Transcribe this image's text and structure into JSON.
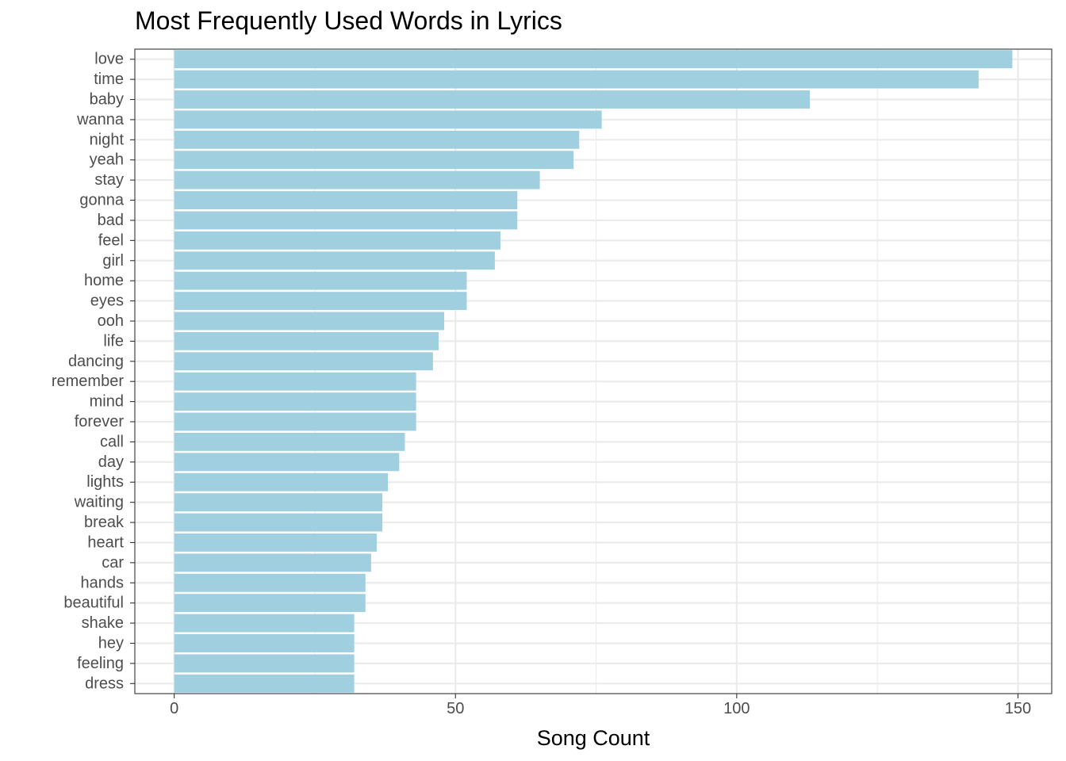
{
  "chart_data": {
    "type": "bar",
    "orientation": "horizontal",
    "title": "Most Frequently Used Words in Lyrics",
    "xlabel": "Song Count",
    "ylabel": "",
    "xlim": [
      -7,
      156
    ],
    "xticks": [
      0,
      50,
      100,
      150
    ],
    "grid": true,
    "legend": "none",
    "bar_color": "#a0cfe0",
    "categories": [
      "love",
      "time",
      "baby",
      "wanna",
      "night",
      "yeah",
      "stay",
      "gonna",
      "bad",
      "feel",
      "girl",
      "home",
      "eyes",
      "ooh",
      "life",
      "dancing",
      "remember",
      "mind",
      "forever",
      "call",
      "day",
      "lights",
      "waiting",
      "break",
      "heart",
      "car",
      "hands",
      "beautiful",
      "shake",
      "hey",
      "feeling",
      "dress"
    ],
    "values": [
      149,
      143,
      113,
      76,
      72,
      71,
      65,
      61,
      61,
      58,
      57,
      52,
      52,
      48,
      47,
      46,
      43,
      43,
      43,
      41,
      40,
      38,
      37,
      37,
      36,
      35,
      34,
      34,
      32,
      32,
      32,
      32
    ]
  }
}
